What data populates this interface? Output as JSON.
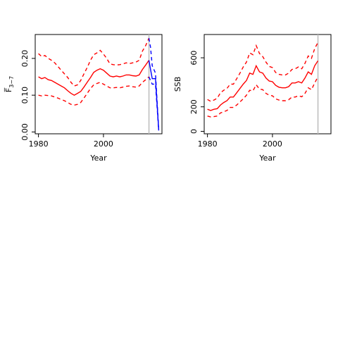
{
  "colors": {
    "estimate": "#ff0000",
    "projection": "#0000ff",
    "terminal_year_line": "#bebebe",
    "axis": "#000000"
  },
  "chart_data": [
    {
      "type": "line",
      "ylabel": "F̅",
      "ylabel_subscript": "3−7",
      "xlabel": "Year",
      "xlim": [
        1979,
        2018
      ],
      "ylim": [
        -0.005,
        0.265
      ],
      "xticks": [
        1980,
        2000
      ],
      "yticks": [
        0.0,
        0.1,
        0.2
      ],
      "ytick_labels": [
        "0.00",
        "0.10",
        "0.20"
      ],
      "terminal_year": 2014,
      "x": [
        1980,
        1981,
        1982,
        1983,
        1984,
        1985,
        1986,
        1987,
        1988,
        1989,
        1990,
        1991,
        1992,
        1993,
        1994,
        1995,
        1996,
        1997,
        1998,
        1999,
        2000,
        2001,
        2002,
        2003,
        2004,
        2005,
        2006,
        2007,
        2008,
        2009,
        2010,
        2011,
        2012,
        2013,
        2014
      ],
      "series": [
        {
          "values": [
            0.15,
            0.145,
            0.148,
            0.142,
            0.14,
            0.135,
            0.13,
            0.125,
            0.12,
            0.112,
            0.105,
            0.1,
            0.105,
            0.11,
            0.122,
            0.135,
            0.148,
            0.162,
            0.168,
            0.172,
            0.168,
            0.16,
            0.152,
            0.15,
            0.152,
            0.15,
            0.152,
            0.155,
            0.155,
            0.153,
            0.152,
            0.155,
            0.17,
            0.182,
            0.195
          ],
          "style": "solid"
        },
        {
          "values": [
            0.213,
            0.205,
            0.208,
            0.2,
            0.195,
            0.188,
            0.178,
            0.168,
            0.158,
            0.148,
            0.135,
            0.125,
            0.128,
            0.14,
            0.158,
            0.175,
            0.195,
            0.21,
            0.215,
            0.222,
            0.212,
            0.2,
            0.185,
            0.183,
            0.182,
            0.183,
            0.185,
            0.188,
            0.186,
            0.188,
            0.19,
            0.195,
            0.22,
            0.235,
            0.255
          ],
          "style": "dashed"
        },
        {
          "values": [
            0.1,
            0.098,
            0.1,
            0.099,
            0.098,
            0.095,
            0.092,
            0.088,
            0.085,
            0.08,
            0.075,
            0.073,
            0.075,
            0.08,
            0.092,
            0.105,
            0.118,
            0.128,
            0.132,
            0.135,
            0.13,
            0.125,
            0.12,
            0.12,
            0.121,
            0.12,
            0.122,
            0.124,
            0.125,
            0.123,
            0.122,
            0.125,
            0.135,
            0.142,
            0.15
          ],
          "style": "dashed"
        }
      ],
      "projection": {
        "x": [
          2014,
          2014.5,
          2015,
          2016,
          2017
        ],
        "median": [
          0.195,
          0.17,
          0.145,
          0.145,
          0.005
        ],
        "upper": [
          0.255,
          0.23,
          0.18,
          0.16,
          0.006
        ],
        "lower": [
          0.15,
          0.14,
          0.13,
          0.13,
          0.004
        ]
      }
    },
    {
      "type": "line",
      "ylabel": "SSB",
      "xlabel": "Year",
      "xlim": [
        1979,
        2018
      ],
      "ylim": [
        -20,
        790
      ],
      "xticks": [
        1980,
        2000
      ],
      "yticks": [
        0,
        200,
        600
      ],
      "ytick_labels": [
        "0",
        "200",
        "600"
      ],
      "terminal_year": 2014,
      "x": [
        1980,
        1981,
        1982,
        1983,
        1984,
        1985,
        1986,
        1987,
        1988,
        1989,
        1990,
        1991,
        1992,
        1993,
        1994,
        1995,
        1996,
        1997,
        1998,
        1999,
        2000,
        2001,
        2002,
        2003,
        2004,
        2005,
        2006,
        2007,
        2008,
        2009,
        2010,
        2011,
        2012,
        2013,
        2014
      ],
      "series": [
        {
          "values": [
            180,
            170,
            180,
            185,
            215,
            235,
            250,
            280,
            280,
            315,
            350,
            385,
            415,
            475,
            465,
            535,
            485,
            475,
            435,
            410,
            405,
            375,
            360,
            355,
            355,
            365,
            395,
            395,
            405,
            395,
            435,
            485,
            465,
            535,
            575
          ],
          "style": "solid"
        },
        {
          "values": [
            260,
            245,
            255,
            270,
            315,
            335,
            350,
            385,
            385,
            430,
            475,
            525,
            565,
            640,
            625,
            700,
            635,
            610,
            565,
            530,
            520,
            480,
            465,
            460,
            460,
            475,
            505,
            510,
            525,
            510,
            555,
            615,
            595,
            675,
            725
          ],
          "style": "dashed"
        },
        {
          "values": [
            125,
            118,
            120,
            125,
            150,
            160,
            170,
            195,
            195,
            215,
            240,
            265,
            295,
            335,
            330,
            380,
            345,
            340,
            310,
            295,
            290,
            265,
            255,
            250,
            250,
            258,
            280,
            280,
            290,
            282,
            310,
            355,
            340,
            395,
            445
          ],
          "style": "dashed"
        }
      ]
    }
  ]
}
